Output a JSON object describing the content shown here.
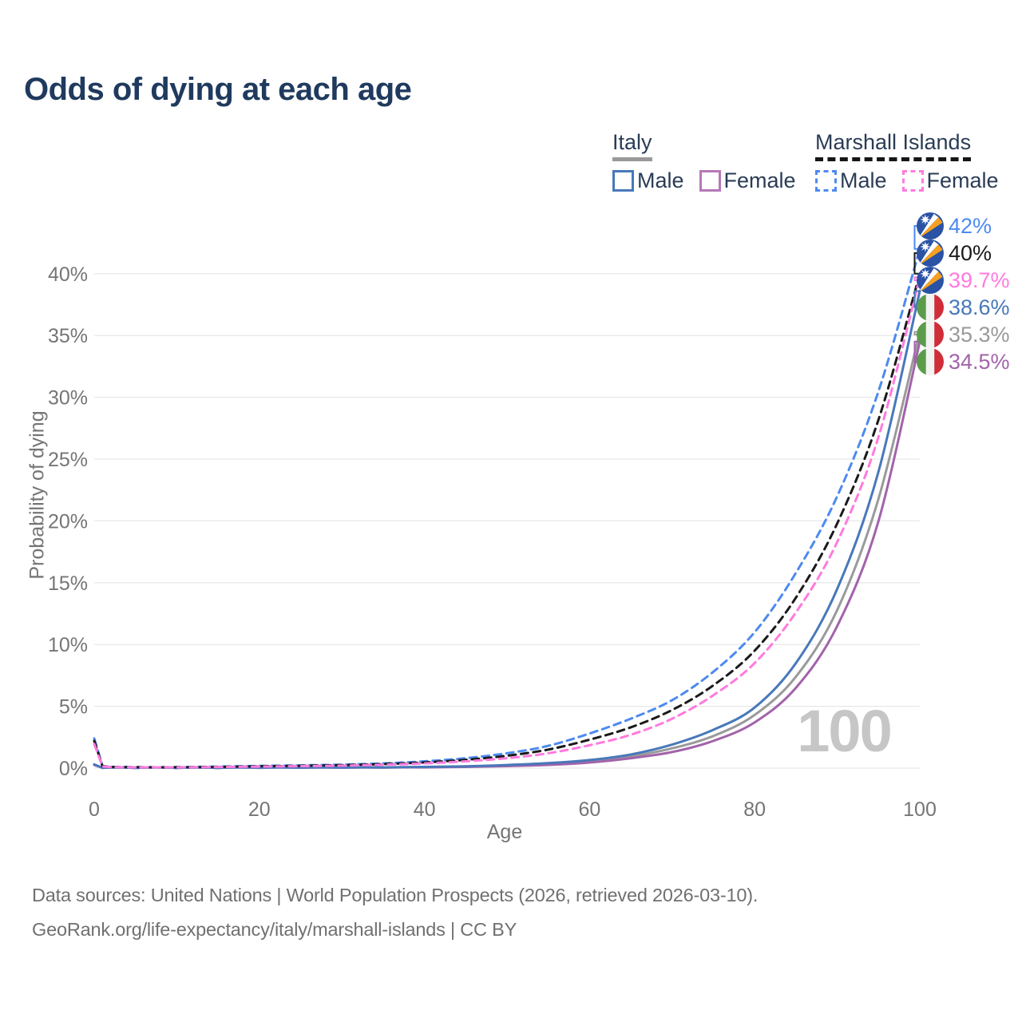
{
  "title": "Odds of dying at each age",
  "watermark": "100",
  "legend": {
    "groups": [
      {
        "name": "Italy",
        "line_style": "solid",
        "all_line_color": "#9a9a9a",
        "items": [
          {
            "label": "Male",
            "color": "#4878ba"
          },
          {
            "label": "Female",
            "color": "#b678b7"
          }
        ]
      },
      {
        "name": "Marshall Islands",
        "line_style": "dashed",
        "all_line_color": "#1a1a1a",
        "items": [
          {
            "label": "Male",
            "color": "#4d8af0"
          },
          {
            "label": "Female",
            "color": "#ff7ade"
          }
        ]
      }
    ]
  },
  "chart_data": {
    "type": "line",
    "title": "Odds of dying at each age",
    "xlabel": "Age",
    "ylabel": "Probability of dying",
    "xlim": [
      0,
      100
    ],
    "ylim_percent": [
      0,
      43
    ],
    "xticks": [
      0,
      20,
      40,
      60,
      80,
      100
    ],
    "yticks_percent": [
      0,
      5,
      10,
      15,
      20,
      25,
      30,
      35,
      40
    ],
    "ytick_labels": [
      "0%",
      "5%",
      "10%",
      "15%",
      "20%",
      "25%",
      "30%",
      "35%",
      "40%"
    ],
    "grid": true,
    "legend_position": "top-right",
    "ages": [
      0,
      1,
      5,
      10,
      15,
      20,
      25,
      30,
      35,
      40,
      45,
      50,
      55,
      60,
      65,
      70,
      75,
      80,
      85,
      90,
      95,
      100
    ],
    "series": [
      {
        "name": "Italy Both sexes",
        "country": "Italy",
        "sex": "both",
        "color": "#9a9a9a",
        "dash": false,
        "end_label": "35.3%",
        "values_percent": [
          0.28,
          0.02,
          0.01,
          0.01,
          0.02,
          0.03,
          0.03,
          0.04,
          0.05,
          0.08,
          0.12,
          0.2,
          0.33,
          0.55,
          0.95,
          1.6,
          2.6,
          4.3,
          7.4,
          12.8,
          21.8,
          35.3
        ]
      },
      {
        "name": "Italy Female",
        "country": "Italy",
        "sex": "female",
        "color": "#a263aa",
        "dash": false,
        "end_label": "34.5%",
        "values_percent": [
          0.25,
          0.02,
          0.01,
          0.01,
          0.01,
          0.02,
          0.03,
          0.03,
          0.04,
          0.06,
          0.1,
          0.16,
          0.26,
          0.45,
          0.8,
          1.3,
          2.2,
          3.7,
          6.5,
          11.5,
          20.0,
          34.5
        ]
      },
      {
        "name": "Italy Male",
        "country": "Italy",
        "sex": "male",
        "color": "#4878ba",
        "dash": false,
        "end_label": "38.6%",
        "values_percent": [
          0.3,
          0.02,
          0.01,
          0.01,
          0.02,
          0.04,
          0.04,
          0.05,
          0.06,
          0.1,
          0.15,
          0.25,
          0.4,
          0.65,
          1.1,
          1.9,
          3.1,
          4.9,
          8.5,
          14.5,
          24.0,
          38.6
        ]
      },
      {
        "name": "Marshall Islands Male",
        "country": "Marshall Islands",
        "sex": "male",
        "color": "#4d8af0",
        "dash": true,
        "end_label": "42%",
        "values_percent": [
          2.4,
          0.18,
          0.08,
          0.08,
          0.12,
          0.18,
          0.22,
          0.28,
          0.38,
          0.55,
          0.8,
          1.2,
          1.8,
          2.8,
          4.0,
          5.5,
          7.8,
          11.0,
          15.8,
          22.0,
          30.5,
          42.0
        ]
      },
      {
        "name": "Marshall Islands Both sexes",
        "country": "Marshall Islands",
        "sex": "both",
        "color": "#1a1a1a",
        "dash": true,
        "end_label": "40%",
        "values_percent": [
          2.2,
          0.16,
          0.07,
          0.07,
          0.1,
          0.15,
          0.19,
          0.24,
          0.32,
          0.46,
          0.67,
          1.0,
          1.5,
          2.3,
          3.3,
          4.7,
          6.7,
          9.5,
          13.8,
          19.8,
          28.2,
          40.0
        ]
      },
      {
        "name": "Marshall Islands Female",
        "country": "Marshall Islands",
        "sex": "female",
        "color": "#ff7ade",
        "dash": true,
        "end_label": "39.7%",
        "values_percent": [
          1.95,
          0.14,
          0.06,
          0.06,
          0.09,
          0.12,
          0.16,
          0.2,
          0.27,
          0.38,
          0.55,
          0.8,
          1.2,
          1.85,
          2.7,
          4.0,
          5.9,
          8.5,
          12.6,
          18.3,
          26.8,
          39.7
        ]
      }
    ]
  },
  "annotations": [
    {
      "value_label": "42%",
      "value_percent": 42.0,
      "color": "#4d8af0",
      "flag": "marshall-islands",
      "series": "Marshall Islands Male"
    },
    {
      "value_label": "40%",
      "value_percent": 40.0,
      "color": "#1a1a1a",
      "flag": "marshall-islands",
      "series": "Marshall Islands Both sexes"
    },
    {
      "value_label": "39.7%",
      "value_percent": 39.7,
      "color": "#ff7ade",
      "flag": "marshall-islands",
      "series": "Marshall Islands Female"
    },
    {
      "value_label": "38.6%",
      "value_percent": 38.6,
      "color": "#4878ba",
      "flag": "italy",
      "series": "Italy Male"
    },
    {
      "value_label": "35.3%",
      "value_percent": 35.3,
      "color": "#9a9a9a",
      "flag": "italy",
      "series": "Italy Both sexes"
    },
    {
      "value_label": "34.5%",
      "value_percent": 34.5,
      "color": "#a263aa",
      "flag": "italy",
      "series": "Italy Female"
    }
  ],
  "footer": {
    "line1": "Data sources: United Nations | World Population Prospects (2026, retrieved 2026-03-10).",
    "line2": "GeoRank.org/life-expectancy/italy/marshall-islands | CC BY"
  },
  "colors": {
    "title": "#1f3a5e",
    "axis_text": "#757575",
    "gridline": "#e8e8e8",
    "watermark": "#c6c6c6",
    "legend_text": "#2a3c55",
    "footer_text": "#707070"
  }
}
